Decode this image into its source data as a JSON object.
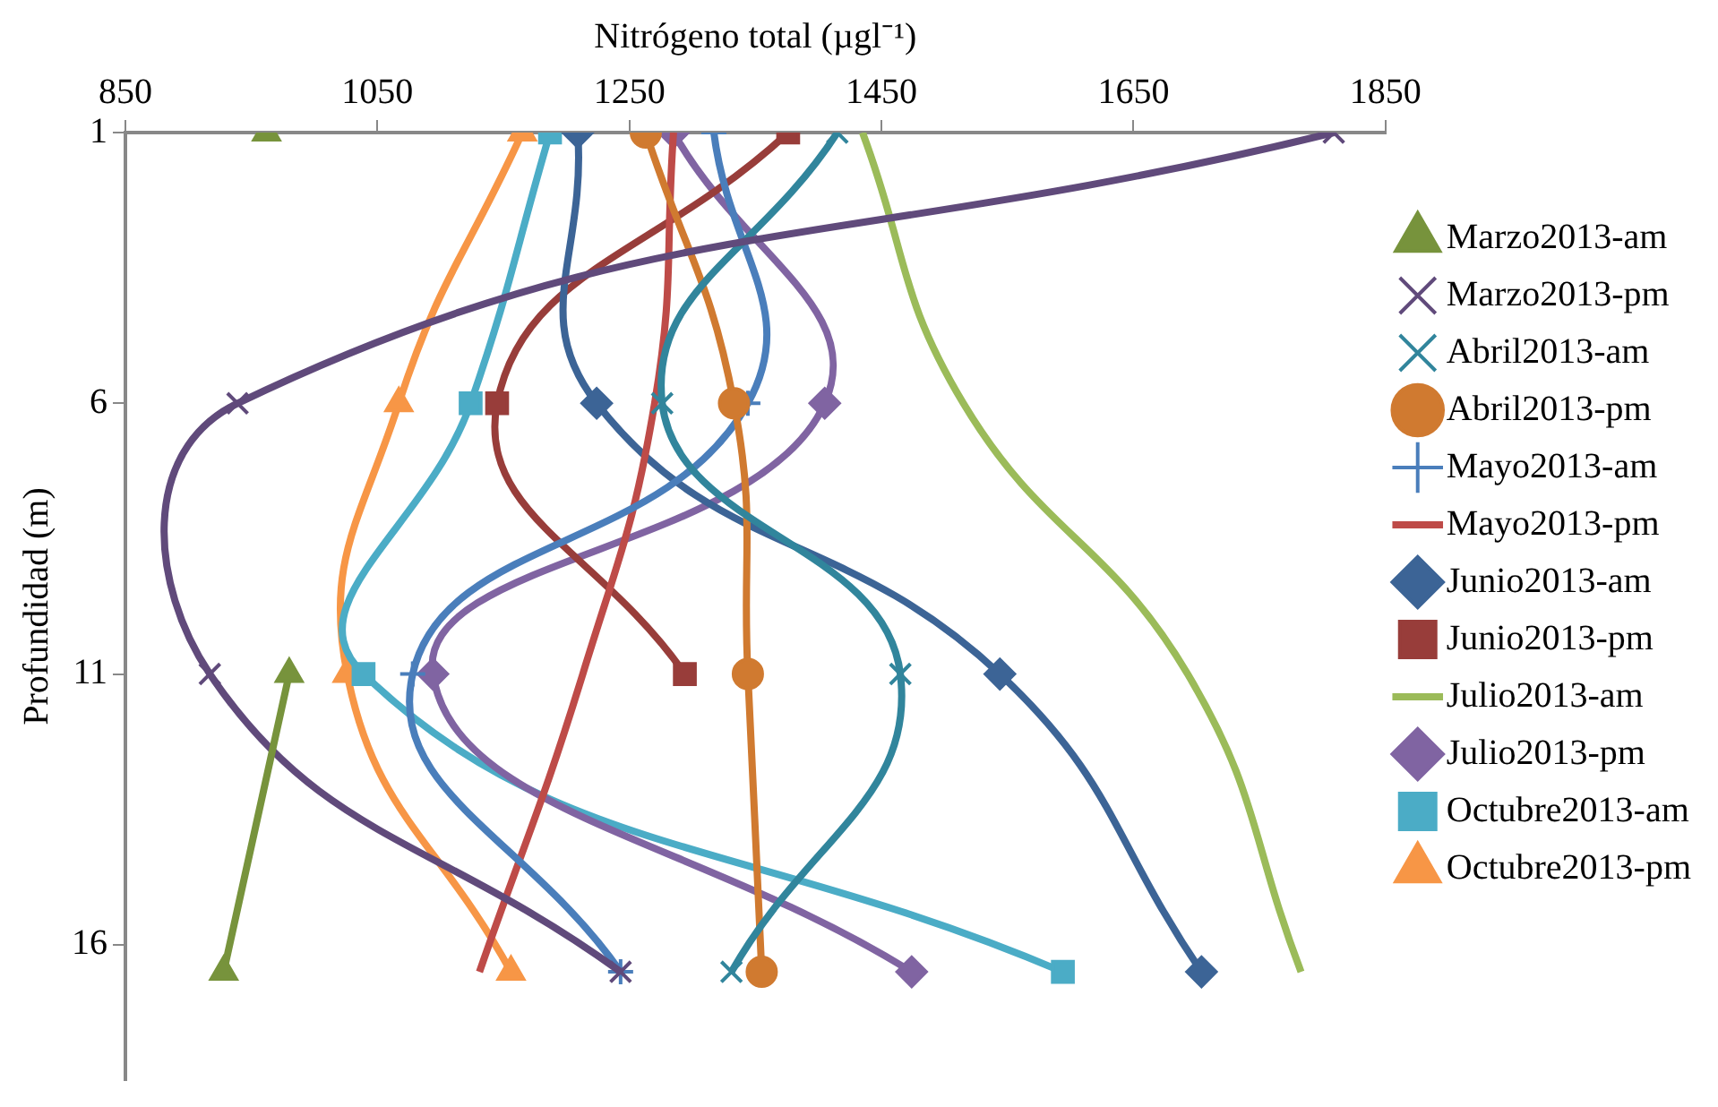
{
  "chart_data": {
    "type": "line",
    "xlabel": "Nitrógeno total (µgl⁻¹)",
    "ylabel": "Profundidad (m)",
    "xlim": [
      850,
      1850
    ],
    "xticks": [
      850,
      1050,
      1250,
      1450,
      1650,
      1850
    ],
    "ylim": [
      18.5,
      1
    ],
    "yticks": [
      1,
      6,
      11,
      16
    ],
    "grid": false,
    "legend": "right",
    "series": [
      {
        "name": "Marzo2013-am",
        "color": "#77933c",
        "marker": "triangle",
        "x": [
          962,
          null,
          980,
          928
        ],
        "values": [
          1,
          null,
          11,
          16.5
        ]
      },
      {
        "name": "Marzo2013-pm",
        "color": "#604a7b",
        "marker": "cross",
        "x": [
          1809,
          939,
          917,
          1243
        ],
        "values": [
          1,
          6,
          11,
          16.5
        ]
      },
      {
        "name": "Abril2013-am",
        "color": "#31859c",
        "marker": "cross",
        "x": [
          1415,
          1276,
          1465,
          1331
        ],
        "values": [
          1,
          6,
          11,
          16.5
        ]
      },
      {
        "name": "Abril2013-pm",
        "color": "#d07a30",
        "marker": "circle",
        "x": [
          1263,
          1333,
          1344,
          1355
        ],
        "values": [
          1,
          6,
          11,
          16.5
        ]
      },
      {
        "name": "Mayo2013-am",
        "color": "#4a7ebb",
        "marker": "plus",
        "x": [
          1317,
          1344,
          1078,
          1243
        ],
        "values": [
          1,
          6,
          11,
          16.5
        ]
      },
      {
        "name": "Mayo2013-pm",
        "color": "#be4b48",
        "marker": "none",
        "x": [
          1285,
          1270,
          1213,
          1131
        ],
        "values": [
          1,
          6,
          11,
          16.5
        ]
      },
      {
        "name": "Junio2013-am",
        "color": "#3c6496",
        "marker": "diamond",
        "x": [
          1209,
          1224,
          1544,
          1704
        ],
        "values": [
          1,
          6,
          11,
          16.5
        ]
      },
      {
        "name": "Junio2013-pm",
        "color": "#983d3a",
        "marker": "square",
        "x": [
          1376,
          1145,
          1294,
          null
        ],
        "values": [
          1,
          6,
          11,
          null
        ]
      },
      {
        "name": "Julio2013-am",
        "color": "#9bbb59",
        "marker": "none",
        "x": [
          1435,
          1515,
          1693,
          1783
        ],
        "values": [
          1,
          6,
          11,
          16.5
        ]
      },
      {
        "name": "Julio2013-pm",
        "color": "#8064a2",
        "marker": "diamond",
        "x": [
          1285,
          1405,
          1094,
          1474
        ],
        "values": [
          1,
          6,
          11,
          16.5
        ]
      },
      {
        "name": "Octubre2013-am",
        "color": "#4bacc6",
        "marker": "square",
        "x": [
          1187,
          1124,
          1039,
          1594
        ],
        "values": [
          1,
          6,
          11,
          16.5
        ]
      },
      {
        "name": "Octubre2013-pm",
        "color": "#f79646",
        "marker": "triangle",
        "x": [
          1165,
          1067,
          1026,
          1156
        ],
        "values": [
          1,
          6,
          11,
          16.5
        ]
      }
    ]
  }
}
